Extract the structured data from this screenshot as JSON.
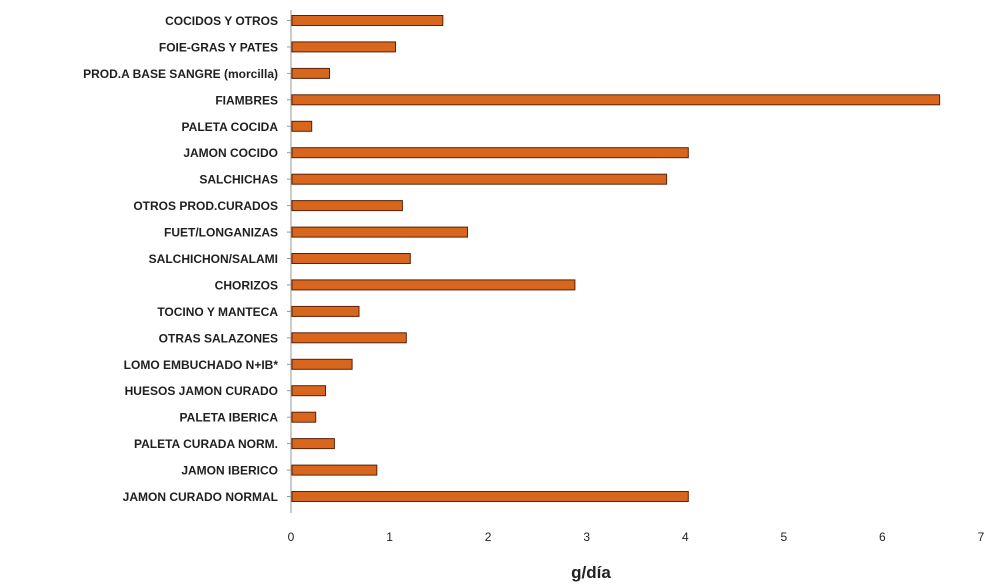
{
  "chart_data": {
    "type": "bar",
    "orientation": "horizontal",
    "categories": [
      "COCIDOS Y OTROS",
      "FOIE-GRAS Y PATES",
      "PROD.A BASE SANGRE (morcilla)",
      "FIAMBRES",
      "PALETA COCIDA",
      "JAMON COCIDO",
      "SALCHICHAS",
      "OTROS PROD.CURADOS",
      "FUET/LONGANIZAS",
      "SALCHICHON/SALAMI",
      "CHORIZOS",
      "TOCINO Y MANTECA",
      "OTRAS SALAZONES",
      "LOMO EMBUCHADO N+IB*",
      "HUESOS JAMON CURADO",
      "PALETA IBERICA",
      "PALETA CURADA NORM.",
      "JAMON IBERICO",
      "JAMON CURADO NORMAL"
    ],
    "values": [
      1.53,
      1.05,
      0.38,
      6.57,
      0.2,
      4.02,
      3.8,
      1.12,
      1.78,
      1.2,
      2.87,
      0.68,
      1.16,
      0.61,
      0.34,
      0.24,
      0.43,
      0.86,
      4.02
    ],
    "xlabel": "g/día",
    "xlim": [
      0,
      7
    ],
    "xticks": [
      0,
      1,
      2,
      3,
      4,
      5,
      6,
      7
    ],
    "grid": false,
    "bar_color": "#d8661c",
    "bar_edge_color": "#5a2208"
  }
}
